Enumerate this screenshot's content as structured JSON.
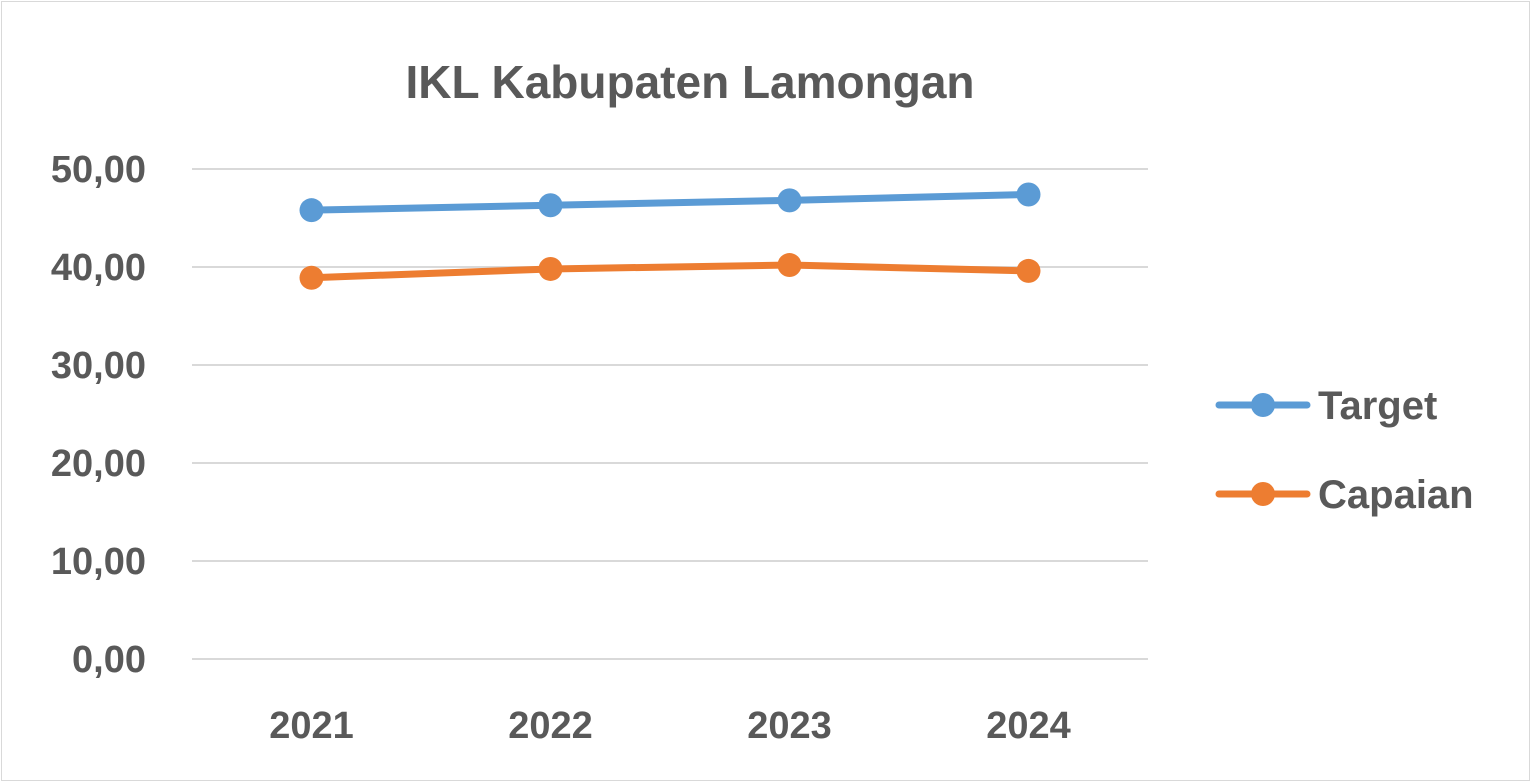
{
  "chart_data": {
    "type": "line",
    "title": "IKL Kabupaten Lamongan",
    "categories": [
      "2021",
      "2022",
      "2023",
      "2024"
    ],
    "ylim": [
      0,
      50
    ],
    "yticks": [
      0,
      10,
      20,
      30,
      40,
      50
    ],
    "ytick_labels": [
      "0,00",
      "10,00",
      "20,00",
      "30,00",
      "40,00",
      "50,00"
    ],
    "grid": true,
    "legend_position": "right",
    "series": [
      {
        "name": "Target",
        "color": "#5b9bd5",
        "values": [
          45.8,
          46.3,
          46.8,
          47.4
        ]
      },
      {
        "name": "Capaian",
        "color": "#ed7d31",
        "values": [
          38.9,
          39.8,
          40.2,
          39.6
        ]
      }
    ]
  }
}
